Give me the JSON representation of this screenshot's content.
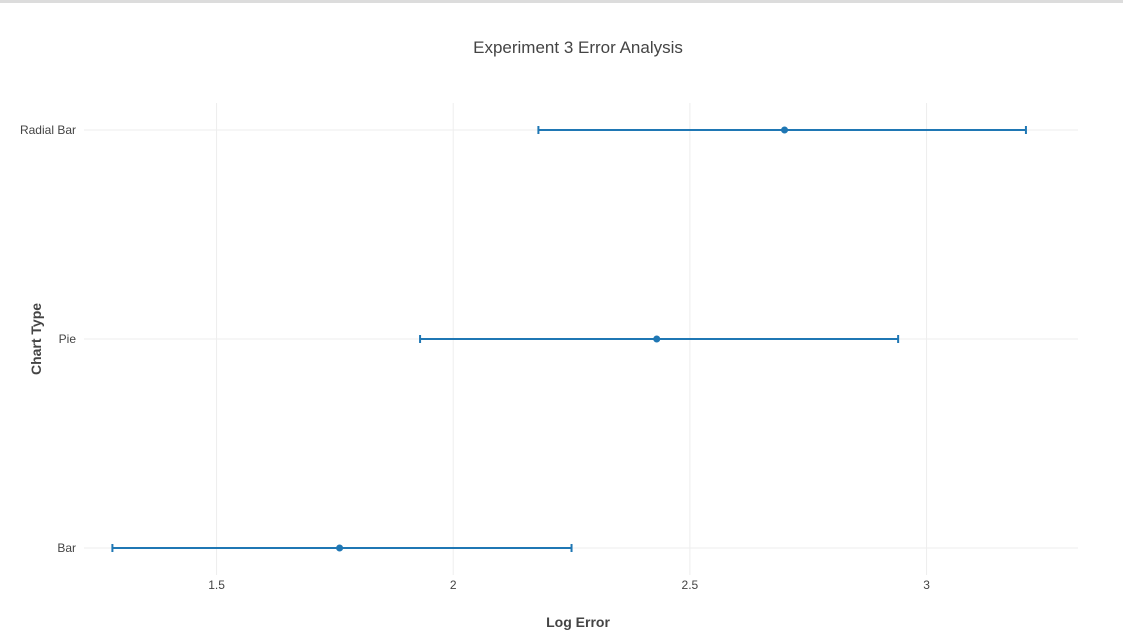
{
  "chart_data": {
    "type": "scatter",
    "title": "Experiment 3 Error Analysis",
    "xlabel": "Log Error",
    "ylabel": "Chart Type",
    "categories": [
      "Bar",
      "Pie",
      "Radial Bar"
    ],
    "xlim": [
      1.22,
      3.32
    ],
    "xticks": [
      {
        "value": 1.5,
        "label": "1.5"
      },
      {
        "value": 2,
        "label": "2"
      },
      {
        "value": 2.5,
        "label": "2.5"
      },
      {
        "value": 3,
        "label": "3"
      }
    ],
    "grid": true,
    "series": [
      {
        "values": [
          1.76,
          2.43,
          2.7
        ],
        "error_low": [
          1.28,
          1.93,
          2.18
        ],
        "error_high": [
          2.25,
          2.94,
          3.21
        ]
      }
    ],
    "colors": {
      "series": "#1f77b4",
      "grid": "#eeeeee",
      "text": "#444444"
    }
  }
}
